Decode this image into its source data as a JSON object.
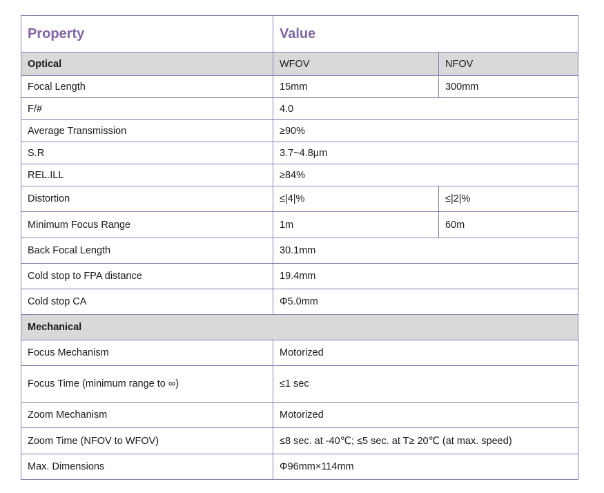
{
  "header": {
    "property": "Property",
    "value": "Value"
  },
  "optical": {
    "label": "Optical",
    "col_wfov": "WFOV",
    "col_nfov": "NFOV",
    "rows": [
      {
        "name": "Focal Length",
        "wfov": "15mm",
        "nfov": "300mm"
      },
      {
        "name": "F/#",
        "value": "4.0"
      },
      {
        "name": "Average Transmission",
        "value": "≥90%"
      },
      {
        "name": "S.R",
        "value": "3.7~4.8μm"
      },
      {
        "name": "REL.ILL",
        "value": "≥84%"
      },
      {
        "name": "Distortion",
        "wfov": "≤|4|%",
        "nfov": "≤|2|%"
      },
      {
        "name": "Minimum Focus Range",
        "wfov": "1m",
        "nfov": "60m"
      },
      {
        "name": "Back Focal Length",
        "value": "30.1mm"
      },
      {
        "name": "Cold stop to FPA distance",
        "value": "19.4mm"
      },
      {
        "name": "Cold stop CA",
        "value": "Φ5.0mm"
      }
    ]
  },
  "mechanical": {
    "label": "Mechanical",
    "rows": [
      {
        "name": "Focus Mechanism",
        "value": "Motorized"
      },
      {
        "name": "Focus Time (minimum range to  ∞)",
        "value": "≤1 sec"
      },
      {
        "name": "Zoom Mechanism",
        "value": "Motorized"
      },
      {
        "name": "Zoom Time (NFOV to WFOV)",
        "value": "≤8 sec. at -40℃; ≤5 sec. at T≥  20℃ (at max. speed)"
      },
      {
        "name": "Max. Dimensions",
        "value": "Φ96mm×114mm"
      }
    ]
  }
}
